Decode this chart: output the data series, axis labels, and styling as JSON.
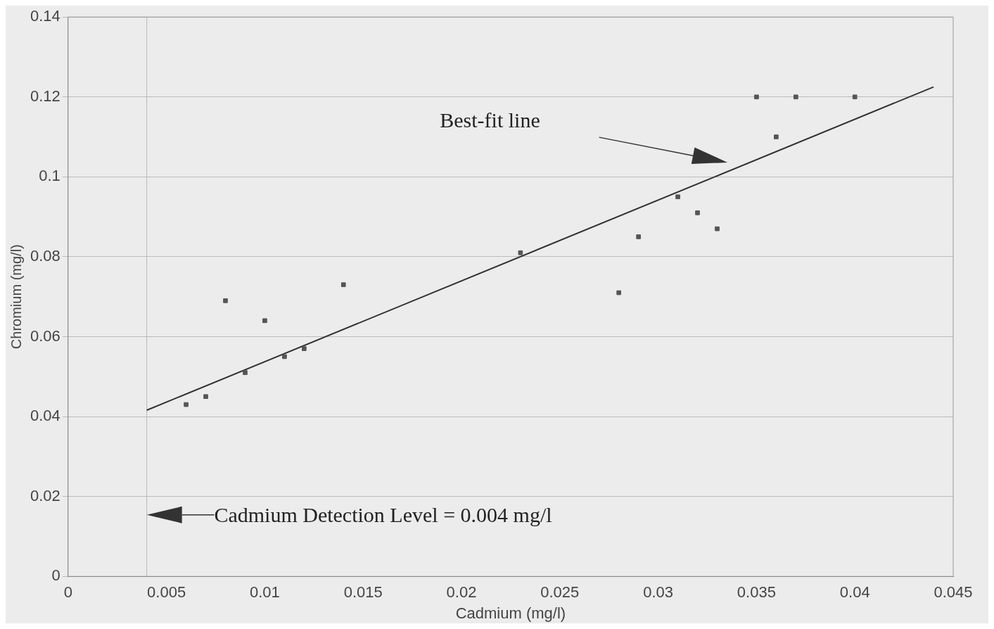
{
  "chart_data": {
    "type": "scatter",
    "xlabel": "Cadmium (mg/l)",
    "ylabel": "Chromium (mg/l)",
    "xlim": [
      0,
      0.045
    ],
    "xticks": [
      0,
      0.005,
      0.01,
      0.015,
      0.02,
      0.025,
      0.03,
      0.035,
      0.04,
      0.045
    ],
    "ylim": [
      0,
      0.14
    ],
    "yticks": [
      0,
      0.02,
      0.04,
      0.06,
      0.08,
      0.1,
      0.12,
      0.14
    ],
    "grid": "y",
    "marker": "square",
    "series": [
      {
        "color": "#555555",
        "x": [
          0.006,
          0.007,
          0.008,
          0.009,
          0.01,
          0.011,
          0.012,
          0.014,
          0.023,
          0.028,
          0.029,
          0.031,
          0.032,
          0.033,
          0.035,
          0.036,
          0.037,
          0.04
        ],
        "values": [
          0.043,
          0.045,
          0.069,
          0.051,
          0.064,
          0.055,
          0.057,
          0.073,
          0.081,
          0.071,
          0.085,
          0.095,
          0.091,
          0.087,
          0.12,
          0.11,
          0.12,
          0.12
        ]
      },
      {
        "type": "line",
        "color": "#333333",
        "marker": "none",
        "line_style": "solid",
        "x": [
          0.004,
          0.044
        ],
        "values": [
          0.0416,
          0.1225
        ]
      }
    ],
    "ref_lines": [
      {
        "axis": "x",
        "value": 0.004,
        "color": "#b8b8b8"
      }
    ],
    "annotations": [
      "Best-fit line",
      "Cadmium Detection Level = 0.004 mg/l"
    ]
  }
}
